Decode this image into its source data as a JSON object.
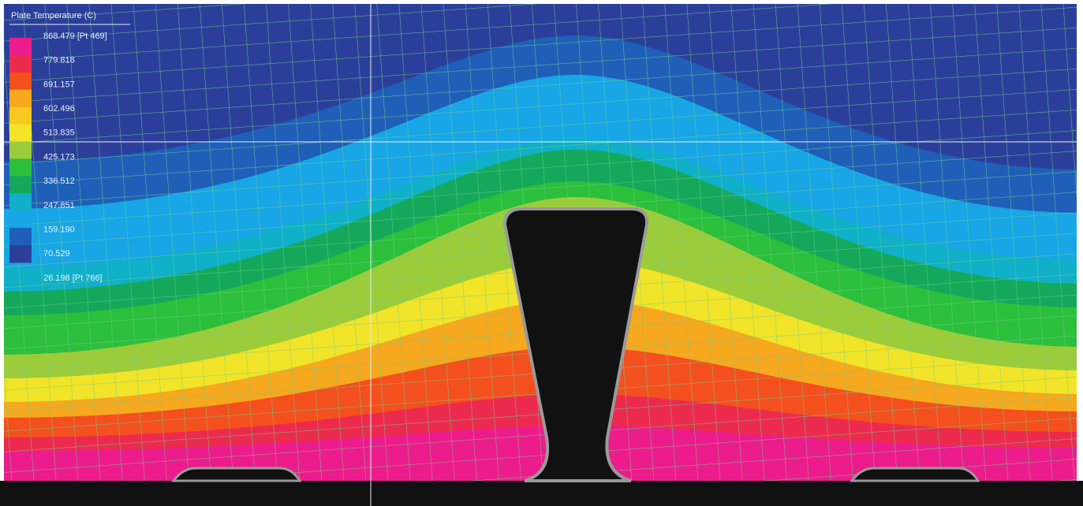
{
  "legend": {
    "title": "Plate Temperature (C)",
    "labels": [
      "868.479 [Pt 469]",
      "779.818",
      "691.157",
      "602.496",
      "513.835",
      "425.173",
      "336.512",
      "247.851",
      "159.190",
      "70.529",
      "26.198 [Pt 766]"
    ]
  }
}
